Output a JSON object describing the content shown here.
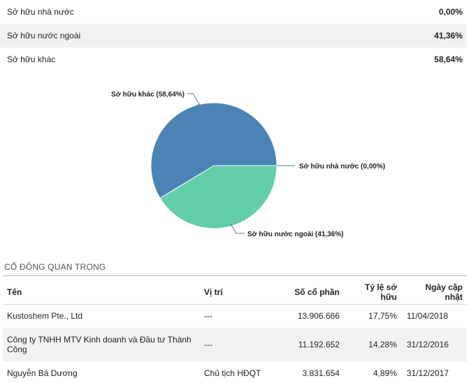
{
  "ownership": [
    {
      "label": "Sở hữu nhà nước",
      "value": "0,00%"
    },
    {
      "label": "Sở hữu nước ngoài",
      "value": "41,36%"
    },
    {
      "label": "Sở hữu khác",
      "value": "58,64%"
    }
  ],
  "chart_data": {
    "type": "pie",
    "slices": [
      {
        "name": "Sở hữu nhà nước",
        "value": 0.0,
        "label": "Sở hữu nhà nước (0,00%)",
        "color": "#4a84b5"
      },
      {
        "name": "Sở hữu nước ngoài",
        "value": 41.36,
        "label": "Sở hữu nước ngoài (41,36%)",
        "color": "#62cfa9"
      },
      {
        "name": "Sở hữu khác",
        "value": 58.64,
        "label": "Sở hữu khác (58,64%)",
        "color": "#4a84b5"
      }
    ]
  },
  "shareholders": {
    "title": "CỔ ĐÔNG QUAN TRỌNG",
    "columns": [
      "Tên",
      "Vị trí",
      "Số cổ phần",
      "Tỷ lệ sở hữu",
      "Ngày cập nhật"
    ],
    "rows": [
      {
        "name": "Kustoshem Pte., Ltd",
        "position": "---",
        "shares": "13.906.666",
        "ratio": "17,75%",
        "date": "11/04/2018"
      },
      {
        "name": "Công ty TNHH MTV Kinh doanh và Đầu tư Thành Công",
        "position": "---",
        "shares": "11.192.652",
        "ratio": "14,28%",
        "date": "31/12/2016"
      },
      {
        "name": "Nguyễn Bá Dương",
        "position": "Chủ tịch HĐQT",
        "shares": "3.831.654",
        "ratio": "4,89%",
        "date": "31/12/2017"
      }
    ]
  }
}
